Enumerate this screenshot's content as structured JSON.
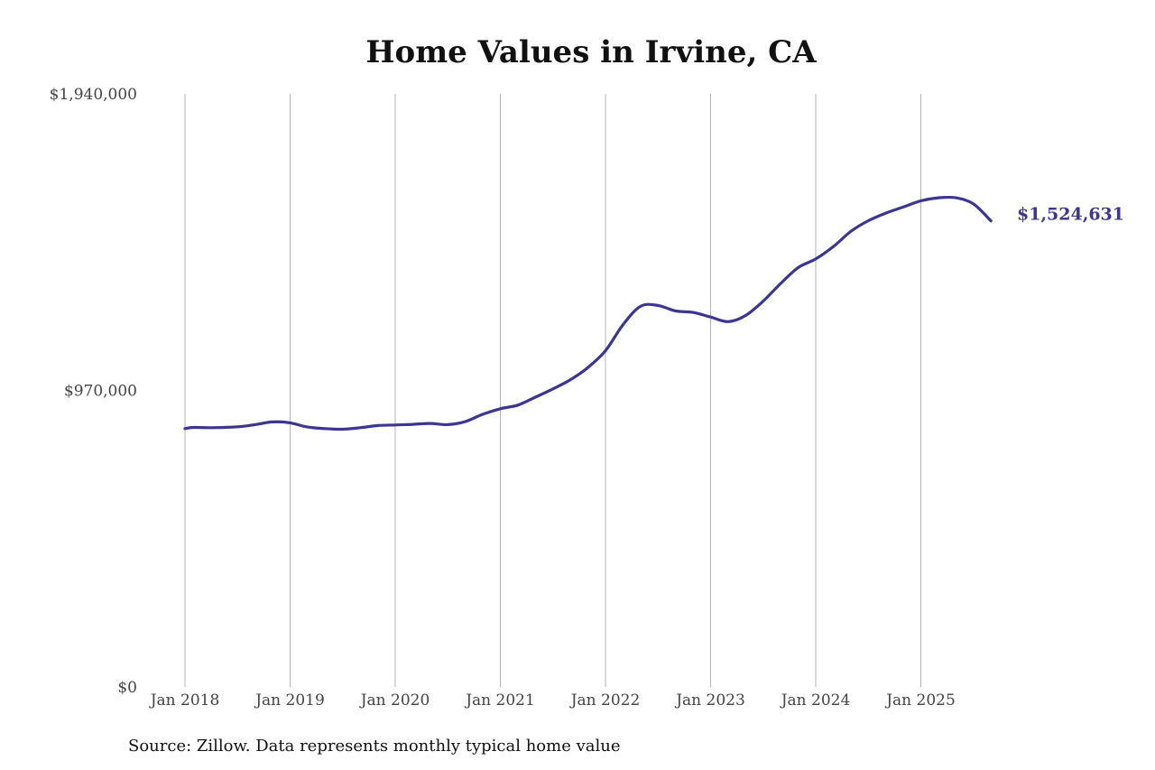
{
  "source_note": "Source: Zillow. Data represents monthly typical home value",
  "chart_data": {
    "type": "line",
    "title": "Home Values in Irvine, CA",
    "xlabel": "",
    "ylabel": "",
    "ylim": [
      0,
      1940000
    ],
    "y_ticks": [
      {
        "value": 0,
        "label": "$0"
      },
      {
        "value": 970000,
        "label": "$970,000"
      },
      {
        "value": 1940000,
        "label": "$1,940,000"
      }
    ],
    "x_ticks": [
      {
        "date": "2018-01",
        "label": "Jan 2018"
      },
      {
        "date": "2019-01",
        "label": "Jan 2019"
      },
      {
        "date": "2020-01",
        "label": "Jan 2020"
      },
      {
        "date": "2021-01",
        "label": "Jan 2021"
      },
      {
        "date": "2022-01",
        "label": "Jan 2022"
      },
      {
        "date": "2023-01",
        "label": "Jan 2023"
      },
      {
        "date": "2024-01",
        "label": "Jan 2024"
      },
      {
        "date": "2025-01",
        "label": "Jan 2025"
      }
    ],
    "grid": "vertical",
    "color": "#3c3591",
    "end_label": "$1,524,631",
    "series": [
      {
        "x": [
          "2018-01",
          "2018-02",
          "2018-04",
          "2018-07",
          "2018-09",
          "2018-11",
          "2019-01",
          "2019-03",
          "2019-05",
          "2019-07",
          "2019-09",
          "2019-11",
          "2020-01",
          "2020-03",
          "2020-05",
          "2020-07",
          "2020-09",
          "2020-11",
          "2021-01",
          "2021-03",
          "2021-05",
          "2021-07",
          "2021-09",
          "2021-11",
          "2022-01",
          "2022-03",
          "2022-05",
          "2022-07",
          "2022-09",
          "2022-11",
          "2023-01",
          "2023-03",
          "2023-05",
          "2023-07",
          "2023-09",
          "2023-11",
          "2024-01",
          "2024-03",
          "2024-05",
          "2024-07",
          "2024-09",
          "2024-11",
          "2025-01",
          "2025-03",
          "2025-05",
          "2025-07",
          "2025-09"
        ],
        "values": [
          845000,
          849000,
          848000,
          851000,
          858000,
          867000,
          864000,
          850000,
          845000,
          843000,
          848000,
          855000,
          857000,
          859000,
          862000,
          858000,
          868000,
          892000,
          910000,
          922000,
          948000,
          975000,
          1005000,
          1045000,
          1100000,
          1185000,
          1245000,
          1248000,
          1230000,
          1225000,
          1210000,
          1195000,
          1215000,
          1262000,
          1320000,
          1372000,
          1400000,
          1440000,
          1490000,
          1525000,
          1550000,
          1570000,
          1590000,
          1600000,
          1600000,
          1580000,
          1524631
        ]
      }
    ]
  }
}
